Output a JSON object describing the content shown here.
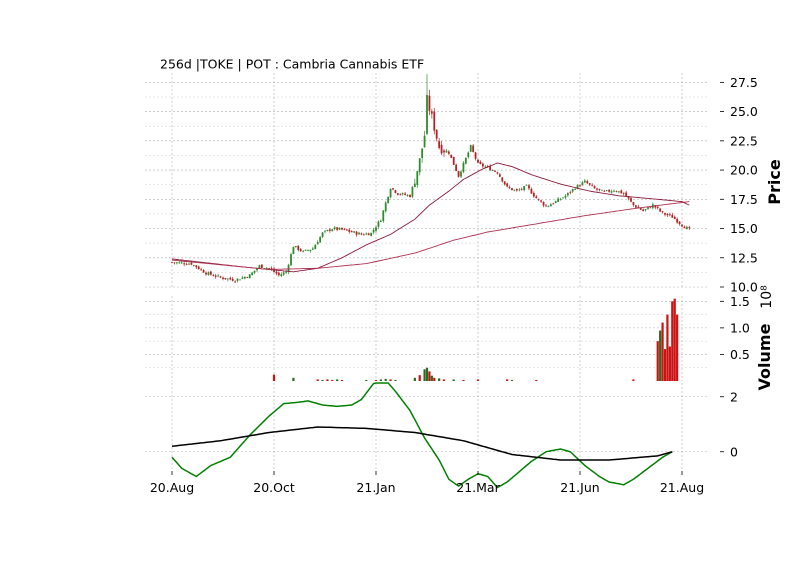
{
  "chart_data": [
    {
      "type": "candlestick",
      "title": "256d |TOKE | POT : Cambria Cannabis ETF",
      "ylabel": "Price",
      "ylim": [
        10,
        28.3
      ],
      "yticks": [
        10.0,
        12.5,
        15.0,
        17.5,
        20.0,
        22.5,
        25.0,
        27.5
      ],
      "ytick_labels": [
        "10.0",
        "12.5",
        "15.0",
        "17.5",
        "20.0",
        "22.5",
        "25.0",
        "27.5"
      ],
      "xtick_labels": [
        "20.Aug",
        "20.Oct",
        "21.Jan",
        "21.Mar",
        "21.Jun",
        "21.Aug"
      ],
      "xtick_index": [
        0,
        42,
        84,
        126,
        168,
        210
      ],
      "n_bars": 214,
      "grid": true,
      "colors": {
        "up": "#2e8b2e",
        "down": "#b22222",
        "wick": "#333333"
      },
      "close_anchors": [
        [
          0,
          12.1
        ],
        [
          8,
          12.0
        ],
        [
          14,
          11.2
        ],
        [
          20,
          10.8
        ],
        [
          26,
          10.6
        ],
        [
          32,
          11.0
        ],
        [
          36,
          11.8
        ],
        [
          40,
          11.6
        ],
        [
          44,
          11.0
        ],
        [
          47,
          11.3
        ],
        [
          50,
          13.5
        ],
        [
          54,
          13.0
        ],
        [
          58,
          13.3
        ],
        [
          62,
          14.6
        ],
        [
          66,
          15.0
        ],
        [
          70,
          14.9
        ],
        [
          74,
          14.7
        ],
        [
          78,
          14.5
        ],
        [
          82,
          14.6
        ],
        [
          86,
          15.8
        ],
        [
          88,
          17.2
        ],
        [
          90,
          18.5
        ],
        [
          93,
          18.0
        ],
        [
          98,
          17.8
        ],
        [
          100,
          19.2
        ],
        [
          102,
          20.8
        ],
        [
          104,
          23.0
        ],
        [
          105,
          26.0
        ],
        [
          107,
          24.5
        ],
        [
          110,
          22.0
        ],
        [
          114,
          21.5
        ],
        [
          116,
          20.5
        ],
        [
          118,
          19.5
        ],
        [
          121,
          21.0
        ],
        [
          123,
          22.0
        ],
        [
          126,
          20.5
        ],
        [
          130,
          20.2
        ],
        [
          134,
          19.8
        ],
        [
          138,
          18.5
        ],
        [
          142,
          18.2
        ],
        [
          146,
          18.6
        ],
        [
          150,
          17.6
        ],
        [
          154,
          16.9
        ],
        [
          158,
          17.3
        ],
        [
          162,
          17.8
        ],
        [
          166,
          18.5
        ],
        [
          170,
          19.0
        ],
        [
          174,
          18.4
        ],
        [
          178,
          18.1
        ],
        [
          182,
          18.3
        ],
        [
          186,
          18.0
        ],
        [
          190,
          17.0
        ],
        [
          194,
          16.5
        ],
        [
          198,
          17.0
        ],
        [
          202,
          16.3
        ],
        [
          206,
          16.0
        ],
        [
          210,
          15.3
        ],
        [
          213,
          14.9
        ]
      ],
      "moving_averages": [
        {
          "window": 50,
          "color": "#8b1a3a",
          "anchors": [
            [
              0,
              12.4
            ],
            [
              30,
              11.7
            ],
            [
              50,
              11.3
            ],
            [
              60,
              11.6
            ],
            [
              70,
              12.5
            ],
            [
              80,
              13.6
            ],
            [
              90,
              14.5
            ],
            [
              100,
              15.8
            ],
            [
              106,
              17.0
            ],
            [
              114,
              18.2
            ],
            [
              120,
              19.2
            ],
            [
              128,
              20.1
            ],
            [
              134,
              20.6
            ],
            [
              140,
              20.3
            ],
            [
              148,
              19.6
            ],
            [
              160,
              18.8
            ],
            [
              172,
              18.2
            ],
            [
              184,
              17.8
            ],
            [
              200,
              17.5
            ],
            [
              210,
              17.3
            ],
            [
              213,
              17.0
            ]
          ]
        },
        {
          "window": 200,
          "color": "#b03050",
          "anchors": [
            [
              0,
              12.3
            ],
            [
              40,
              11.5
            ],
            [
              60,
              11.6
            ],
            [
              80,
              12.0
            ],
            [
              100,
              12.9
            ],
            [
              116,
              14.0
            ],
            [
              130,
              14.7
            ],
            [
              150,
              15.4
            ],
            [
              170,
              16.1
            ],
            [
              190,
              16.7
            ],
            [
              205,
              17.1
            ],
            [
              213,
              17.3
            ]
          ]
        }
      ]
    },
    {
      "type": "bar",
      "ylabel": "Volume",
      "scale_label": "10⁸",
      "ylim": [
        0,
        1.6
      ],
      "yticks": [
        0.5,
        1.0,
        1.5
      ],
      "ytick_labels": [
        "0.5",
        "1.0",
        "1.5"
      ],
      "grid": true,
      "volume_bars": [
        {
          "i": 42,
          "v": 0.12,
          "up": false
        },
        {
          "i": 50,
          "v": 0.06,
          "up": true
        },
        {
          "i": 60,
          "v": 0.03,
          "up": false
        },
        {
          "i": 62,
          "v": 0.02,
          "up": true
        },
        {
          "i": 64,
          "v": 0.03,
          "up": false
        },
        {
          "i": 66,
          "v": 0.02,
          "up": false
        },
        {
          "i": 68,
          "v": 0.03,
          "up": true
        },
        {
          "i": 70,
          "v": 0.02,
          "up": false
        },
        {
          "i": 80,
          "v": 0.02,
          "up": true
        },
        {
          "i": 84,
          "v": 0.02,
          "up": false
        },
        {
          "i": 86,
          "v": 0.03,
          "up": true
        },
        {
          "i": 88,
          "v": 0.04,
          "up": true
        },
        {
          "i": 90,
          "v": 0.03,
          "up": false
        },
        {
          "i": 92,
          "v": 0.02,
          "up": true
        },
        {
          "i": 100,
          "v": 0.06,
          "up": true
        },
        {
          "i": 102,
          "v": 0.11,
          "up": false
        },
        {
          "i": 104,
          "v": 0.22,
          "up": true
        },
        {
          "i": 105,
          "v": 0.25,
          "up": true
        },
        {
          "i": 106,
          "v": 0.18,
          "up": false
        },
        {
          "i": 107,
          "v": 0.1,
          "up": true
        },
        {
          "i": 108,
          "v": 0.06,
          "up": false
        },
        {
          "i": 110,
          "v": 0.05,
          "up": true
        },
        {
          "i": 112,
          "v": 0.03,
          "up": false
        },
        {
          "i": 116,
          "v": 0.03,
          "up": true
        },
        {
          "i": 120,
          "v": 0.02,
          "up": false
        },
        {
          "i": 126,
          "v": 0.03,
          "up": false
        },
        {
          "i": 138,
          "v": 0.03,
          "up": false
        },
        {
          "i": 140,
          "v": 0.02,
          "up": true
        },
        {
          "i": 150,
          "v": 0.02,
          "up": false
        },
        {
          "i": 190,
          "v": 0.03,
          "up": false
        },
        {
          "i": 200,
          "v": 0.75,
          "up": false
        },
        {
          "i": 201,
          "v": 0.95,
          "up": true
        },
        {
          "i": 202,
          "v": 1.1,
          "up": false
        },
        {
          "i": 203,
          "v": 0.6,
          "up": false
        },
        {
          "i": 204,
          "v": 1.25,
          "up": false
        },
        {
          "i": 205,
          "v": 0.65,
          "up": false
        },
        {
          "i": 206,
          "v": 1.5,
          "up": false
        },
        {
          "i": 207,
          "v": 1.55,
          "up": false
        },
        {
          "i": 208,
          "v": 1.25,
          "up": false
        }
      ]
    },
    {
      "type": "line",
      "ylim": [
        -0.7,
        2.5
      ],
      "yticks": [
        0,
        2
      ],
      "ytick_labels": [
        "0",
        "2"
      ],
      "grid": true,
      "series": [
        {
          "color": "#008000",
          "anchors": [
            [
              0,
              -0.2
            ],
            [
              4,
              -0.6
            ],
            [
              10,
              -0.9
            ],
            [
              16,
              -0.5
            ],
            [
              24,
              -0.2
            ],
            [
              32,
              0.6
            ],
            [
              40,
              1.3
            ],
            [
              46,
              1.75
            ],
            [
              52,
              1.8
            ],
            [
              56,
              1.85
            ],
            [
              62,
              1.7
            ],
            [
              68,
              1.65
            ],
            [
              74,
              1.7
            ],
            [
              78,
              1.9
            ],
            [
              84,
              2.6
            ],
            [
              88,
              2.6
            ],
            [
              92,
              2.2
            ],
            [
              98,
              1.5
            ],
            [
              104,
              0.5
            ],
            [
              110,
              -0.3
            ],
            [
              114,
              -1.0
            ],
            [
              118,
              -1.25
            ],
            [
              122,
              -1.0
            ],
            [
              126,
              -0.8
            ],
            [
              130,
              -0.9
            ],
            [
              134,
              -1.3
            ],
            [
              138,
              -1.1
            ],
            [
              142,
              -0.8
            ],
            [
              148,
              -0.35
            ],
            [
              154,
              0.0
            ],
            [
              160,
              0.1
            ],
            [
              164,
              0.0
            ],
            [
              170,
              -0.5
            ],
            [
              176,
              -0.9
            ],
            [
              180,
              -1.1
            ],
            [
              186,
              -1.2
            ],
            [
              190,
              -1.0
            ],
            [
              196,
              -0.6
            ],
            [
              202,
              -0.2
            ],
            [
              206,
              0.0
            ]
          ]
        },
        {
          "color": "#000000",
          "anchors": [
            [
              0,
              0.2
            ],
            [
              20,
              0.4
            ],
            [
              40,
              0.7
            ],
            [
              60,
              0.9
            ],
            [
              80,
              0.85
            ],
            [
              100,
              0.7
            ],
            [
              120,
              0.4
            ],
            [
              140,
              -0.1
            ],
            [
              160,
              -0.3
            ],
            [
              180,
              -0.3
            ],
            [
              200,
              -0.15
            ],
            [
              206,
              0.0
            ]
          ]
        }
      ]
    }
  ]
}
